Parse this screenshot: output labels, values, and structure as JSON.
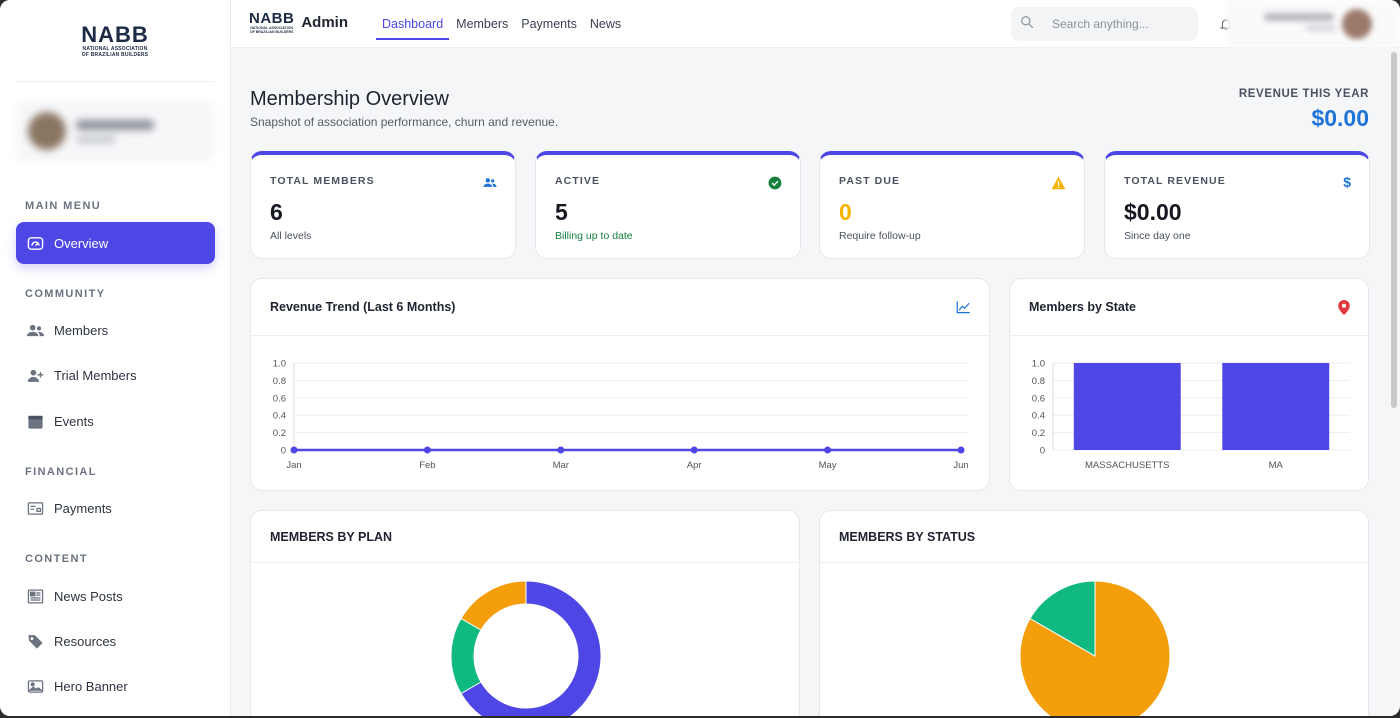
{
  "brand": {
    "logo_big": "NABB",
    "logo_small_1": "NATIONAL ASSOCIATION",
    "logo_small_2": "OF BRAZILIAN BUILDERS",
    "admin_label": "Admin"
  },
  "sidebar": {
    "sections": {
      "main": "MAIN MENU",
      "community": "COMMUNITY",
      "financial": "FINANCIAL",
      "content": "CONTENT"
    },
    "items": [
      {
        "label": "Overview",
        "icon": "gauge-icon",
        "active": true
      },
      {
        "label": "Members",
        "icon": "users-icon"
      },
      {
        "label": "Trial Members",
        "icon": "user-plus-icon"
      },
      {
        "label": "Events",
        "icon": "calendar-icon"
      },
      {
        "label": "Payments",
        "icon": "receipt-icon"
      },
      {
        "label": "News Posts",
        "icon": "newspaper-icon"
      },
      {
        "label": "Resources",
        "icon": "tag-icon"
      },
      {
        "label": "Hero Banner",
        "icon": "image-icon"
      }
    ]
  },
  "topbar": {
    "tabs": [
      {
        "label": "Dashboard",
        "active": true
      },
      {
        "label": "Members"
      },
      {
        "label": "Payments"
      },
      {
        "label": "News"
      }
    ],
    "search_placeholder": "Search anything..."
  },
  "page": {
    "title": "Membership Overview",
    "subtitle": "Snapshot of association performance, churn and revenue.",
    "revenue_label": "REVENUE THIS YEAR",
    "revenue_value": "$0.00"
  },
  "stats": [
    {
      "label": "TOTAL MEMBERS",
      "value": "6",
      "note": "All levels",
      "icon": "users-icon",
      "value_color": "#151820",
      "note_color": "#4b5160"
    },
    {
      "label": "ACTIVE",
      "value": "5",
      "note": "Billing up to date",
      "icon": "check-circle-icon",
      "value_color": "#151820",
      "note_color": "#16803c"
    },
    {
      "label": "PAST DUE",
      "value": "0",
      "note": "Require follow-up",
      "icon": "warning-icon",
      "value_color": "#f4b400",
      "note_color": "#4b5160"
    },
    {
      "label": "TOTAL REVENUE",
      "value": "$0.00",
      "note": "Since day one",
      "icon": "dollar-icon",
      "value_color": "#151820",
      "note_color": "#4b5160"
    }
  ],
  "cards": {
    "revenue_trend": "Revenue Trend (Last 6 Months)",
    "members_by_state": "Members by State",
    "members_by_plan": "MEMBERS BY PLAN",
    "members_by_status": "MEMBERS BY STATUS"
  },
  "colors": {
    "accent": "#4e46e5",
    "green": "#10b981",
    "orange": "#f59e0b"
  },
  "chart_data": [
    {
      "type": "line",
      "title": "Revenue Trend (Last 6 Months)",
      "categories": [
        "Jan",
        "Feb",
        "Mar",
        "Apr",
        "May",
        "Jun"
      ],
      "values": [
        0,
        0,
        0,
        0,
        0,
        0
      ],
      "ylim": [
        0,
        1
      ],
      "yticks": [
        "1.0",
        "0.8",
        "0.6",
        "0.4",
        "0.2",
        "0"
      ],
      "grid": true
    },
    {
      "type": "bar",
      "title": "Members by State",
      "categories": [
        "MASSACHUSETTS",
        "MA"
      ],
      "values": [
        1,
        1
      ],
      "ylim": [
        0,
        1
      ],
      "yticks": [
        "1.0",
        "0.8",
        "0.6",
        "0.4",
        "0.2",
        "0"
      ],
      "grid": true
    },
    {
      "type": "pie",
      "title": "MEMBERS BY PLAN",
      "donut": true,
      "values": [
        4,
        1,
        1
      ],
      "colors": [
        "#4e46e5",
        "#10b981",
        "#f59e0b"
      ]
    },
    {
      "type": "pie",
      "title": "MEMBERS BY STATUS",
      "values": [
        5,
        1
      ],
      "colors": [
        "#f59e0b",
        "#10b981"
      ]
    }
  ]
}
